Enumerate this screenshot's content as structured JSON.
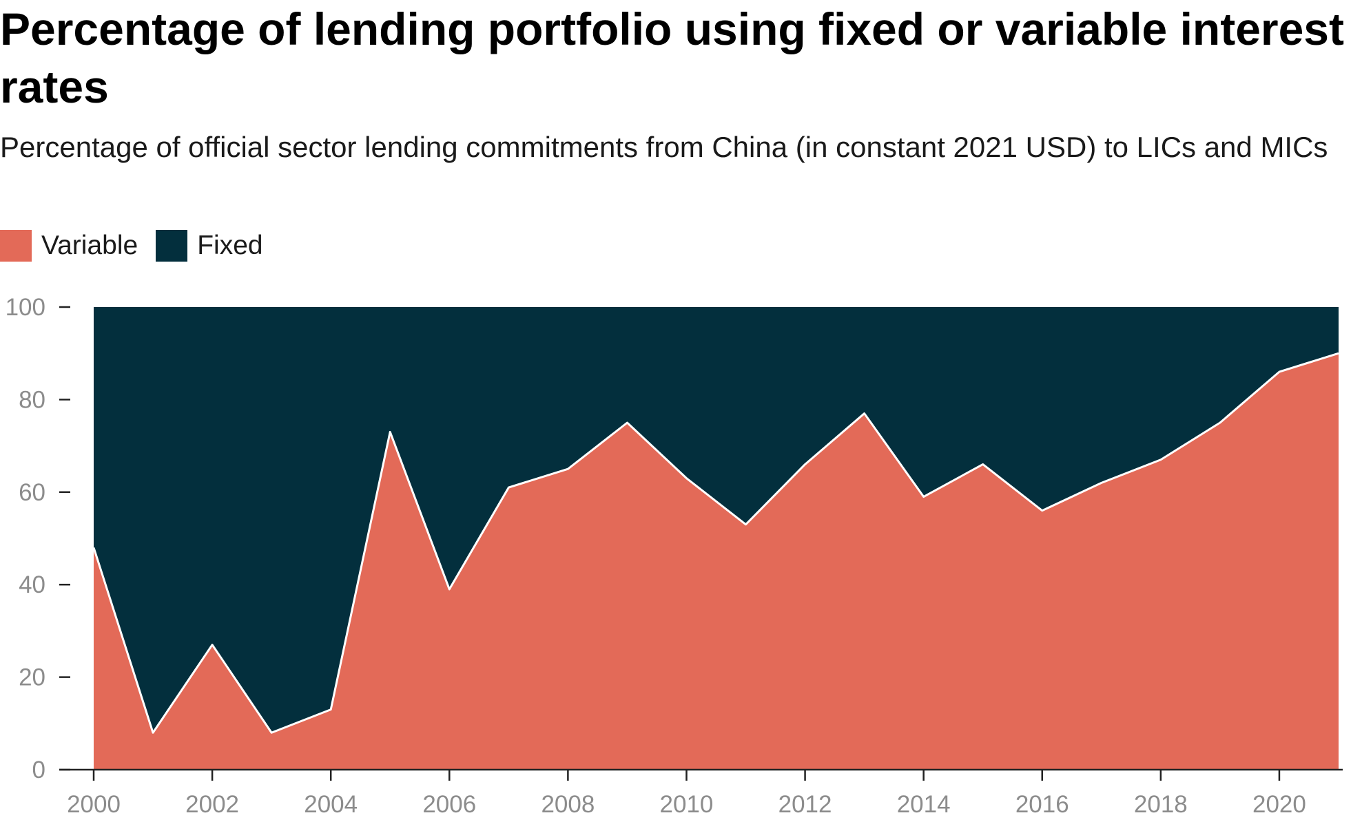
{
  "colors": {
    "variable": "#e36a58",
    "fixed": "#032f3d",
    "axis": "#222222",
    "tick_text": "#8c8c8c"
  },
  "chart_data": {
    "type": "area",
    "stacked": true,
    "title": "Percentage of lending portfolio using fixed or variable interest rates",
    "subtitle": "Percentage of official sector lending commitments from China (in constant 2021 USD) to LICs and MICs",
    "legend_position": "top-left",
    "grid": false,
    "x": [
      2000,
      2001,
      2002,
      2003,
      2004,
      2005,
      2006,
      2007,
      2008,
      2009,
      2010,
      2011,
      2012,
      2013,
      2014,
      2015,
      2016,
      2017,
      2018,
      2019,
      2020,
      2021
    ],
    "xlim": [
      2000,
      2021
    ],
    "ylim": [
      0,
      100
    ],
    "x_ticks": [
      "2000",
      "2002",
      "2004",
      "2006",
      "2008",
      "2010",
      "2012",
      "2014",
      "2016",
      "2018",
      "2020"
    ],
    "y_ticks": [
      "0",
      "20",
      "40",
      "60",
      "80",
      "100"
    ],
    "series": [
      {
        "name": "Variable",
        "values": [
          48,
          8,
          27,
          8,
          13,
          73,
          39,
          61,
          65,
          75,
          63,
          53,
          66,
          77,
          59,
          66,
          56,
          62,
          67,
          75,
          86,
          90
        ]
      },
      {
        "name": "Fixed",
        "values": [
          52,
          92,
          73,
          92,
          87,
          27,
          61,
          39,
          35,
          25,
          37,
          47,
          34,
          23,
          41,
          34,
          44,
          38,
          33,
          25,
          14,
          10
        ]
      }
    ]
  }
}
